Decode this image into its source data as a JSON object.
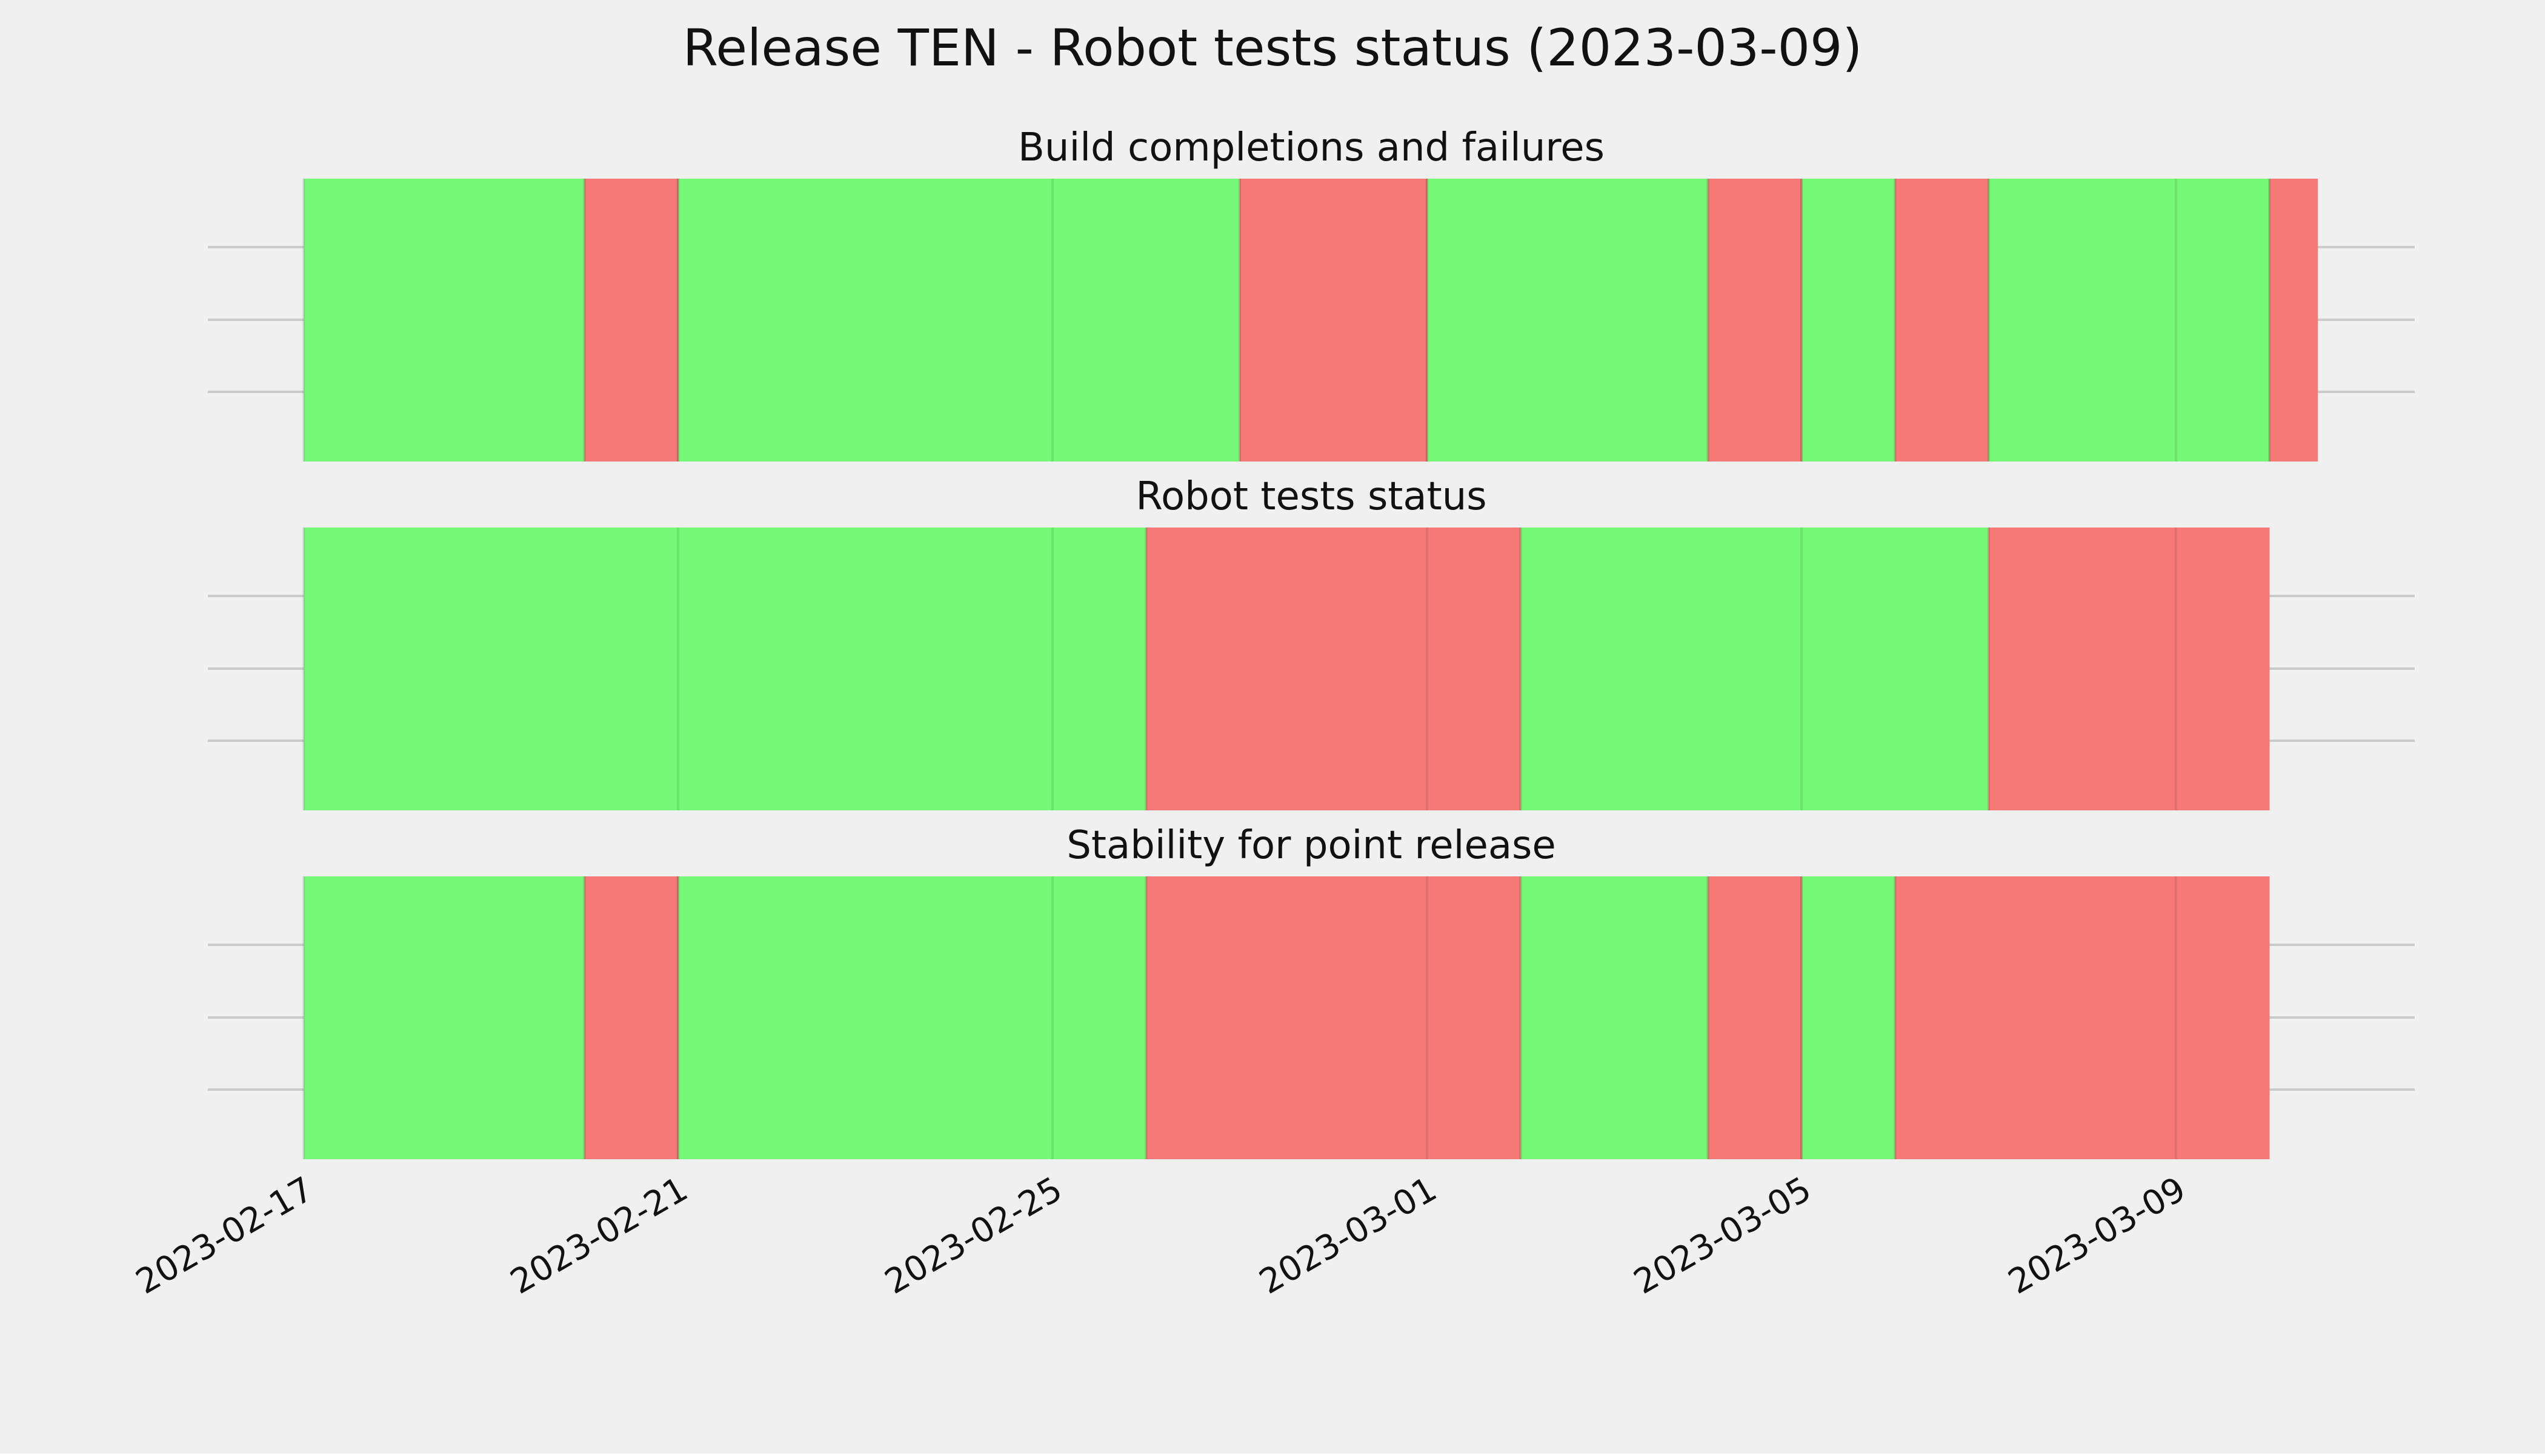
{
  "title": "Release TEN - Robot tests status (2023-03-09)",
  "colors": {
    "background": "#f0f0f0",
    "pass": "#75f875",
    "fail": "#f67877",
    "grid": "#cbcbcb",
    "text": "#111111"
  },
  "chart_data": {
    "type": "timeline",
    "title": "Release TEN - Robot tests status (2023-03-09)",
    "x_axis": {
      "type": "date",
      "range": [
        "2023-02-17",
        "2023-03-10"
      ],
      "tick_labels": [
        "2023-02-17",
        "2023-02-21",
        "2023-02-25",
        "2023-03-01",
        "2023-03-05",
        "2023-03-09"
      ],
      "tick_rotation_deg": 30
    },
    "grid": true,
    "legend": "none",
    "panels": [
      {
        "title": "Build completions and failures",
        "segments": [
          {
            "start": "2023-02-17",
            "end": "2023-02-20",
            "status": "pass"
          },
          {
            "start": "2023-02-20",
            "end": "2023-02-21",
            "status": "fail"
          },
          {
            "start": "2023-02-21",
            "end": "2023-02-27",
            "status": "pass"
          },
          {
            "start": "2023-02-27",
            "end": "2023-03-01",
            "status": "fail"
          },
          {
            "start": "2023-03-01",
            "end": "2023-03-04",
            "status": "pass"
          },
          {
            "start": "2023-03-04",
            "end": "2023-03-05",
            "status": "fail"
          },
          {
            "start": "2023-03-05",
            "end": "2023-03-06",
            "status": "pass"
          },
          {
            "start": "2023-03-06",
            "end": "2023-03-07",
            "status": "fail"
          },
          {
            "start": "2023-03-07",
            "end": "2023-03-10",
            "status": "pass"
          },
          {
            "start": "2023-03-10",
            "end": "2023-03-10",
            "status": "fail"
          }
        ]
      },
      {
        "title": "Robot tests status",
        "segments": [
          {
            "start": "2023-02-17",
            "end": "2023-02-26",
            "status": "pass"
          },
          {
            "start": "2023-02-26",
            "end": "2023-03-02",
            "status": "fail"
          },
          {
            "start": "2023-03-02",
            "end": "2023-03-07",
            "status": "pass"
          },
          {
            "start": "2023-03-07",
            "end": "2023-03-10",
            "status": "fail"
          }
        ]
      },
      {
        "title": "Stability for point release",
        "segments": [
          {
            "start": "2023-02-17",
            "end": "2023-02-20",
            "status": "pass"
          },
          {
            "start": "2023-02-20",
            "end": "2023-02-21",
            "status": "fail"
          },
          {
            "start": "2023-02-21",
            "end": "2023-02-26",
            "status": "pass"
          },
          {
            "start": "2023-02-26",
            "end": "2023-03-02",
            "status": "fail"
          },
          {
            "start": "2023-03-02",
            "end": "2023-03-04",
            "status": "pass"
          },
          {
            "start": "2023-03-04",
            "end": "2023-03-05",
            "status": "fail"
          },
          {
            "start": "2023-03-05",
            "end": "2023-03-06",
            "status": "pass"
          },
          {
            "start": "2023-03-06",
            "end": "2023-03-10",
            "status": "fail"
          }
        ]
      }
    ]
  }
}
